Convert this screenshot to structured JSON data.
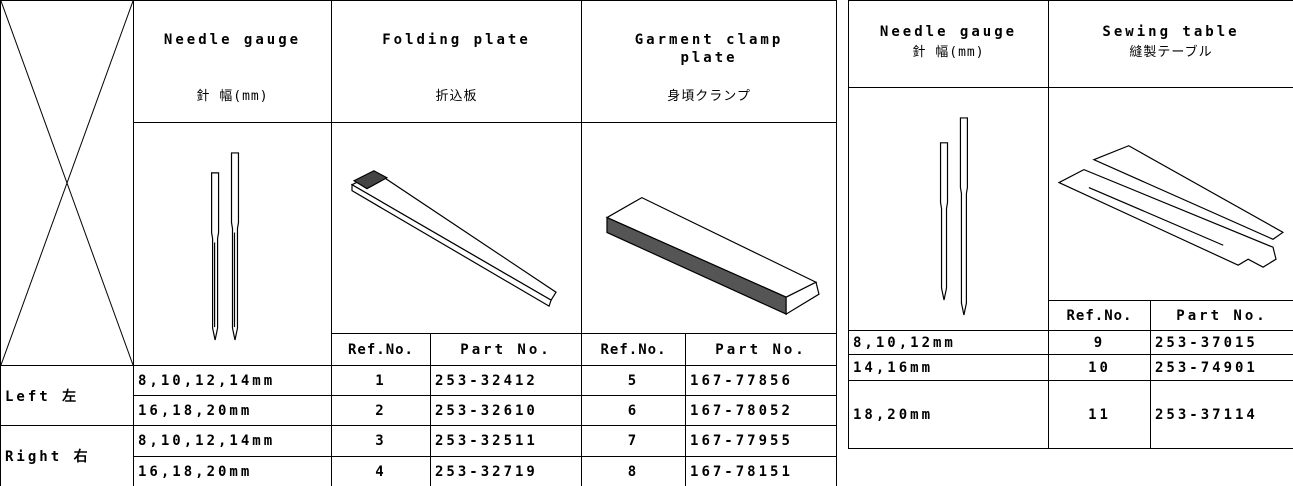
{
  "left_table": {
    "header": {
      "needle_gauge": {
        "en": "Needle gauge",
        "ja": "針 幅(mm)"
      },
      "folding_plate": {
        "en": "Folding plate",
        "ja": "折込板"
      },
      "garment_clamp_plate": {
        "en": "Garment clamp plate",
        "ja": "身頃クランプ"
      }
    },
    "subheader": [
      "Ref.No.",
      "Part No.",
      "Ref.No.",
      "Part No."
    ],
    "groups": [
      {
        "label": "Left 左",
        "rows": [
          [
            "8,10,12,14mm",
            1,
            "253-32412",
            5,
            "167-77856"
          ],
          [
            "16,18,20mm",
            2,
            "253-32610",
            6,
            "167-78052"
          ]
        ]
      },
      {
        "label": "Right 右",
        "rows": [
          [
            "8,10,12,14mm",
            3,
            "253-32511",
            7,
            "167-77955"
          ],
          [
            "16,18,20mm",
            4,
            "253-32719",
            8,
            "167-78151"
          ]
        ]
      }
    ]
  },
  "right_table": {
    "header": {
      "needle_gauge": {
        "en": "Needle gauge",
        "ja": "針 幅(mm)"
      },
      "sewing_table": {
        "en": "Sewing table",
        "ja": "縫製テーブル"
      }
    },
    "subheader": [
      "Ref.No.",
      "Part No."
    ],
    "rows": [
      [
        "8,10,12mm",
        9,
        "253-37015"
      ],
      [
        "14,16mm",
        10,
        "253-74901"
      ],
      [
        "18,20mm",
        11,
        "253-37114"
      ]
    ]
  }
}
